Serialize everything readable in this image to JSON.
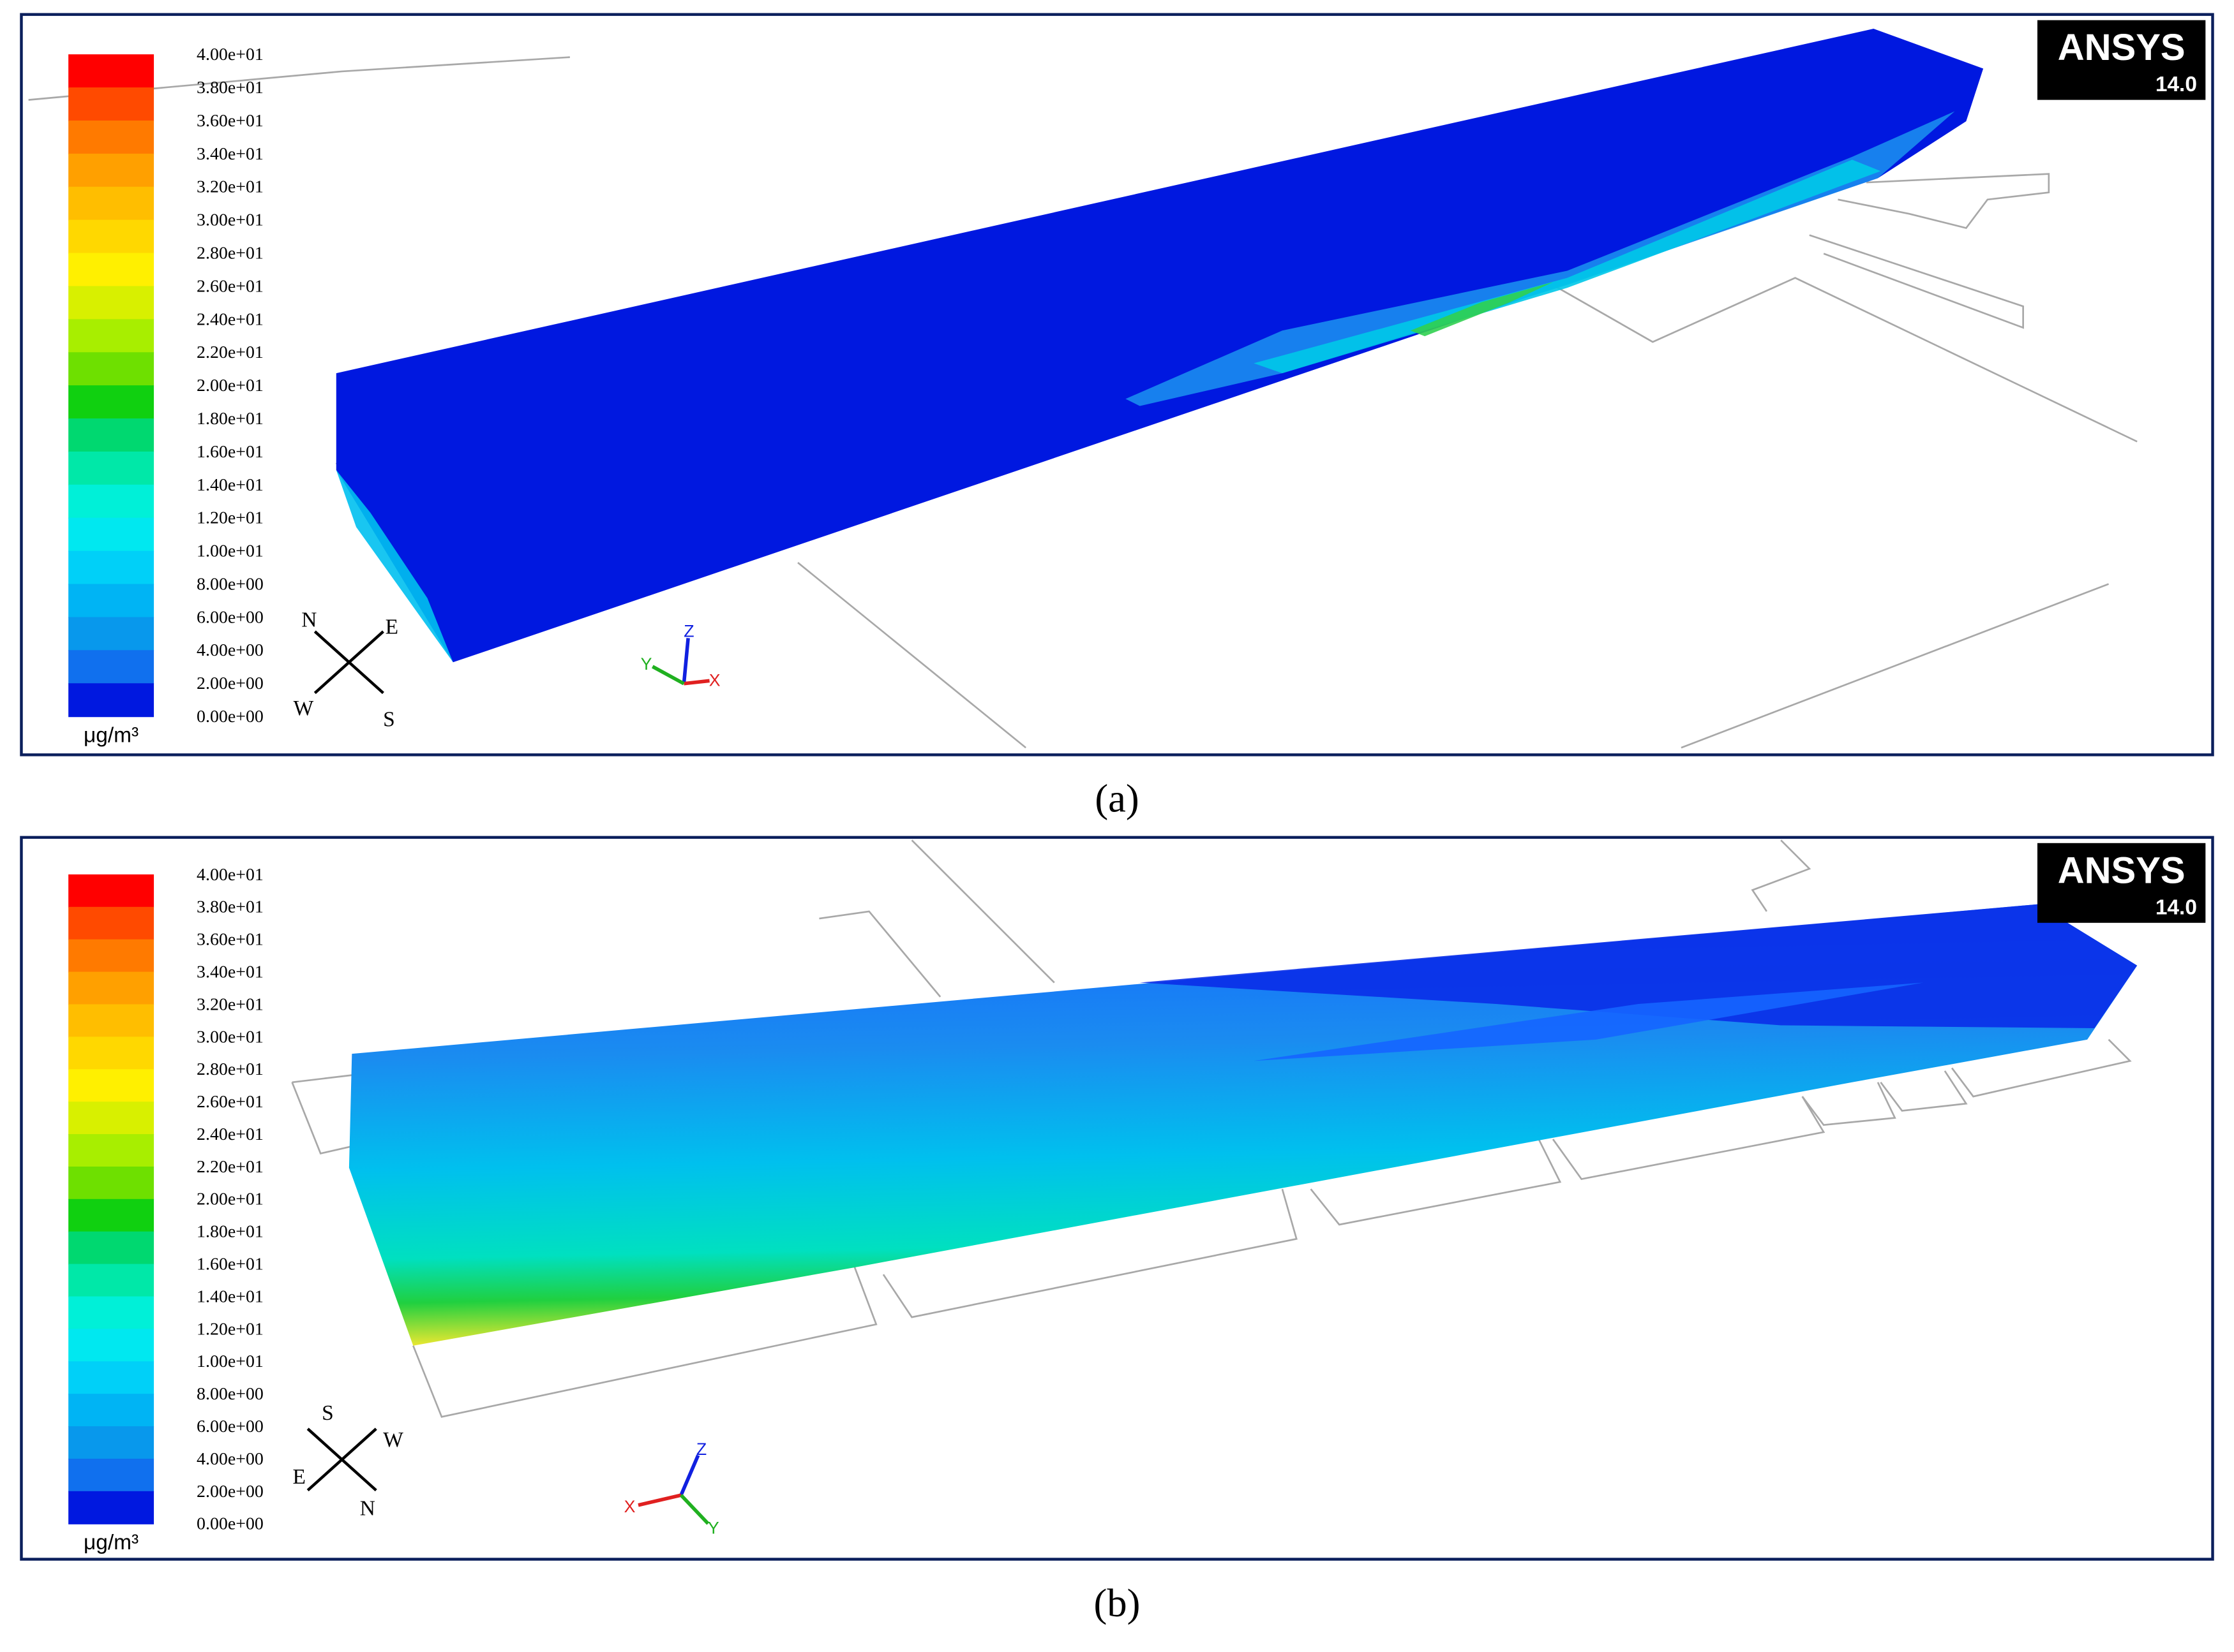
{
  "panels": [
    {
      "caption": "(a)",
      "colorbar": {
        "labels": [
          "4.00e+01",
          "3.80e+01",
          "3.60e+01",
          "3.40e+01",
          "3.20e+01",
          "3.00e+01",
          "2.80e+01",
          "2.60e+01",
          "2.40e+01",
          "2.20e+01",
          "2.00e+01",
          "1.80e+01",
          "1.60e+01",
          "1.40e+01",
          "1.20e+01",
          "1.00e+01",
          "8.00e+00",
          "6.00e+00",
          "4.00e+00",
          "2.00e+00",
          "0.00e+00"
        ],
        "unit": "μg/m³"
      },
      "compass": {
        "north": "N",
        "east": "E",
        "west": "W",
        "south": "S"
      },
      "axes": {
        "x": "X",
        "y": "Y",
        "z": "Z"
      },
      "logo": {
        "brand": "ANSYS",
        "version": "14.0"
      }
    },
    {
      "caption": "(b)",
      "colorbar": {
        "labels": [
          "4.00e+01",
          "3.80e+01",
          "3.60e+01",
          "3.40e+01",
          "3.20e+01",
          "3.00e+01",
          "2.80e+01",
          "2.60e+01",
          "2.40e+01",
          "2.20e+01",
          "2.00e+01",
          "1.80e+01",
          "1.60e+01",
          "1.40e+01",
          "1.20e+01",
          "1.00e+01",
          "8.00e+00",
          "6.00e+00",
          "4.00e+00",
          "2.00e+00",
          "0.00e+00"
        ],
        "unit": "μg/m³"
      },
      "compass": {
        "north": "N",
        "east": "E",
        "west": "W",
        "south": "S"
      },
      "axes": {
        "x": "X",
        "y": "Y",
        "z": "Z"
      },
      "logo": {
        "brand": "ANSYS",
        "version": "14.0"
      }
    }
  ]
}
